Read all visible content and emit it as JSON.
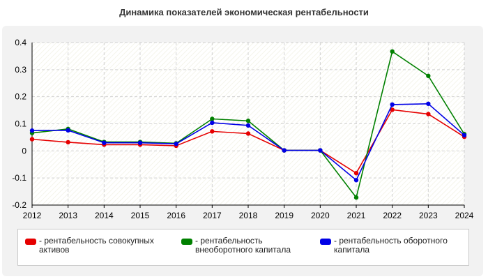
{
  "title": "Динамика показателей экономическая рентабельности",
  "chart_data": {
    "type": "line",
    "x": [
      "2012",
      "2013",
      "2014",
      "2015",
      "2016",
      "2017",
      "2018",
      "2019",
      "2020",
      "2021",
      "2022",
      "2023",
      "2024"
    ],
    "yticks": [
      "0.4",
      "0.3",
      "0.2",
      "0.1",
      "0",
      "-0.1",
      "-0.2"
    ],
    "ylim": [
      -0.2,
      0.4
    ],
    "grid": true,
    "legend_position": "bottom",
    "series": [
      {
        "name": "рентабельность совокупных активов",
        "color": "#e60000",
        "values": [
          0.043,
          0.032,
          0.023,
          0.023,
          0.019,
          0.072,
          0.064,
          0.002,
          0.002,
          -0.082,
          0.152,
          0.136,
          0.052
        ]
      },
      {
        "name": "рентабельность внеоборотного капитала",
        "color": "#008000",
        "values": [
          0.066,
          0.081,
          0.033,
          0.033,
          0.028,
          0.118,
          0.111,
          0.002,
          0.002,
          -0.172,
          0.367,
          0.277,
          0.062
        ]
      },
      {
        "name": "рентабельность оборотного капитала",
        "color": "#0000e6",
        "values": [
          0.075,
          0.076,
          0.03,
          0.03,
          0.026,
          0.104,
          0.094,
          0.002,
          0.002,
          -0.108,
          0.171,
          0.174,
          0.058
        ]
      }
    ]
  },
  "legend": {
    "items": [
      {
        "label": "- рентабельность совокупных активов",
        "color": "#e60000"
      },
      {
        "label": "- рентабельность внеоборотного капитала",
        "color": "#008000"
      },
      {
        "label": "- рентабельность оборотного капитала",
        "color": "#0000e6"
      }
    ]
  }
}
